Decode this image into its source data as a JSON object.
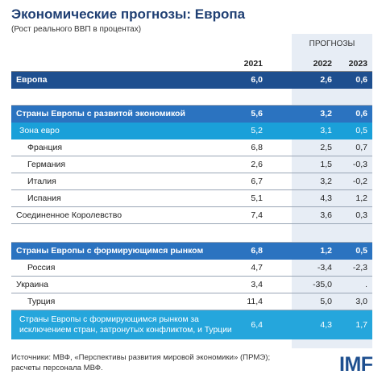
{
  "title": "Экономические прогнозы: Европа",
  "subtitle": "(Рост реального ВВП в процентах)",
  "forecast_label": "ПРОГНОЗЫ",
  "columns": [
    "2021",
    "2022",
    "2023"
  ],
  "rows": [
    {
      "name": "Европа",
      "y2021": "6,0",
      "y2022": "2,6",
      "y2023": "0,6"
    },
    {
      "name": "Страны Европы с развитой экономикой",
      "y2021": "5,6",
      "y2022": "3,2",
      "y2023": "0,6"
    },
    {
      "name": "Зона евро",
      "y2021": "5,2",
      "y2022": "3,1",
      "y2023": "0,5"
    },
    {
      "name": "Франция",
      "y2021": "6,8",
      "y2022": "2,5",
      "y2023": "0,7"
    },
    {
      "name": "Германия",
      "y2021": "2,6",
      "y2022": "1,5",
      "y2023": "-0,3"
    },
    {
      "name": "Италия",
      "y2021": "6,7",
      "y2022": "3,2",
      "y2023": "-0,2"
    },
    {
      "name": "Испания",
      "y2021": "5,1",
      "y2022": "4,3",
      "y2023": "1,2"
    },
    {
      "name": "Соединенное Королевство",
      "y2021": "7,4",
      "y2022": "3,6",
      "y2023": "0,3"
    },
    {
      "name": "Страны Европы с формирующимся рынком",
      "y2021": "6,8",
      "y2022": "1,2",
      "y2023": "0,5"
    },
    {
      "name": "Россия",
      "y2021": "4,7",
      "y2022": "-3,4",
      "y2023": "-2,3"
    },
    {
      "name": "Украина",
      "y2021": "3,4",
      "y2022": "-35,0",
      "y2023": "."
    },
    {
      "name": "Турция",
      "y2021": "11,4",
      "y2022": "5,0",
      "y2023": "3,0"
    },
    {
      "name_line1": "Страны Европы с формирующимся рынком за",
      "name_line2": "исключением стран, затронутых конфликтом, и Турции",
      "y2021": "6,4",
      "y2022": "4,3",
      "y2023": "1,7"
    }
  ],
  "source": "Источники: МВФ, «Перспективы развития мировой экономики» (ПРМЭ); расчеты персонала МВФ.",
  "logo": "IMF",
  "colors": {
    "title": "#1f3f73",
    "dark": "#1e4f8f",
    "mid": "#2b73c0",
    "light": "#1aa0d9",
    "forecast_bg": "#e7edf5"
  }
}
